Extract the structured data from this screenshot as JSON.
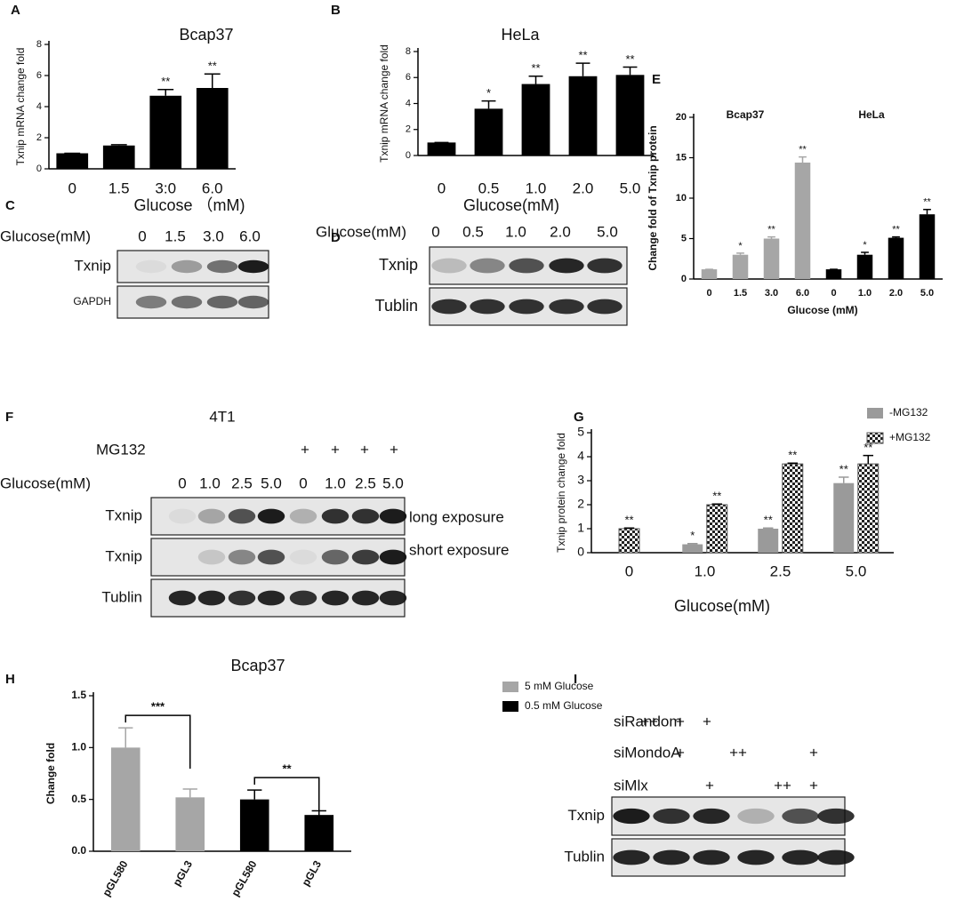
{
  "panel_letters": [
    "A",
    "B",
    "C",
    "D",
    "E",
    "F",
    "G",
    "H",
    "I"
  ],
  "chart_data": [
    {
      "type": "bar",
      "title": "Bcap37",
      "ylabel": "Txnip mRNA change fold",
      "xlabel": "Glucose （mM)",
      "categories": [
        "0",
        "1.5",
        "3:0",
        "6.0"
      ],
      "values": [
        1,
        1.5,
        4.7,
        5.2
      ],
      "errors": [
        0,
        0.05,
        0.4,
        0.9
      ],
      "labels": [
        null,
        null,
        "**",
        "**"
      ],
      "color": "#000000",
      "ylim": [
        0,
        8
      ],
      "yticks": [
        0,
        2,
        4,
        6,
        8
      ]
    },
    {
      "type": "bar",
      "title": "HeLa",
      "ylabel": "Txnip mRNA change fold",
      "xlabel": "Glucose(mM)",
      "categories": [
        "0",
        "0.5",
        "1.0",
        "2.0",
        "5.0"
      ],
      "values": [
        1,
        3.6,
        5.5,
        6.1,
        6.2
      ],
      "errors": [
        0,
        0.6,
        0.6,
        1.0,
        0.6
      ],
      "labels": [
        null,
        "*",
        "**",
        "**",
        "**"
      ],
      "color": "#000000",
      "ylim": [
        0,
        8
      ],
      "yticks": [
        0,
        2,
        4,
        6,
        8
      ]
    },
    {
      "type": "bar",
      "ylabel": "Change fold of Txnip protein",
      "xlabel": "Glucose (mM)",
      "group_labels": [
        "Bcap37",
        "HeLa"
      ],
      "categories": [
        "0",
        "1.5",
        "3.0",
        "6.0",
        "0",
        "1.0",
        "2.0",
        "5.0"
      ],
      "values": [
        1.2,
        3.0,
        5.0,
        14.4,
        1.2,
        3.0,
        5.1,
        8.0
      ],
      "errors": [
        0,
        0.2,
        0.2,
        0.7,
        0,
        0.3,
        0.1,
        0.6
      ],
      "labels": [
        null,
        "*",
        "**",
        "**",
        null,
        "*",
        "**",
        "**"
      ],
      "colors": [
        "#a6a6a6",
        "#a6a6a6",
        "#a6a6a6",
        "#a6a6a6",
        "#000000",
        "#000000",
        "#000000",
        "#000000"
      ],
      "ylim": [
        0,
        20
      ],
      "yticks": [
        0,
        5,
        10,
        15,
        20
      ]
    },
    {
      "type": "bar",
      "ylabel": "Txnip protein change fold",
      "xlabel": "Glucose(mM)",
      "categories": [
        "0",
        "1.0",
        "2.5",
        "5.0"
      ],
      "series": [
        {
          "name": "-MG132",
          "color": "#9a9a9a",
          "values": [
            null,
            0.35,
            1.0,
            2.9
          ],
          "errors": [
            null,
            0.03,
            0.03,
            0.25
          ],
          "labels": [
            null,
            "*",
            "**",
            "**"
          ]
        },
        {
          "name": "+MG132",
          "color": "#000000",
          "hatch": "checker",
          "values": [
            1.0,
            2.0,
            3.7,
            3.7
          ],
          "errors": [
            0.03,
            0.03,
            0.03,
            0.35
          ],
          "labels": [
            "**",
            "**",
            "**",
            "**"
          ]
        }
      ],
      "ylim": [
        0,
        5
      ],
      "yticks": [
        0,
        1,
        2,
        3,
        4,
        5
      ]
    },
    {
      "type": "bar",
      "title": "Bcap37",
      "ylabel": "Change fold",
      "categories": [
        "pGL580",
        "pGL3",
        "pGL580",
        "pGL3"
      ],
      "series": [
        {
          "name": "5 mM Glucose",
          "color": "#a6a6a6",
          "values": [
            1.0,
            0.52,
            null,
            null
          ],
          "errors": [
            0.19,
            0.08,
            null,
            null
          ]
        },
        {
          "name": "0.5 mM Glucose",
          "color": "#000000",
          "values": [
            null,
            null,
            0.5,
            0.35
          ],
          "errors": [
            null,
            null,
            0.09,
            0.04
          ]
        }
      ],
      "comparisons": [
        "***",
        "**"
      ],
      "ylim": [
        0,
        1.5
      ],
      "yticks": [
        {
          "value": 0,
          "label": "0.0"
        },
        0.5,
        {
          "value": 1,
          "label": "1.0"
        },
        1.5
      ]
    }
  ],
  "blots": [
    {
      "header": "Glucose(mM)",
      "lanes": [
        "0",
        "1.5",
        "3.0",
        "6.0"
      ],
      "rows": [
        "Txnip",
        "GAPDH"
      ]
    },
    {
      "header": "Glucose(mM)",
      "lanes": [
        "0",
        "0.5",
        "1.0",
        "2.0",
        "5.0"
      ],
      "rows": [
        "Txnip",
        "Tublin"
      ]
    },
    {
      "title": "4T1",
      "treatments": [
        {
          "name": "MG132",
          "marks": [
            "+",
            "+",
            "+",
            "+"
          ]
        }
      ],
      "header": "Glucose(mM)",
      "lanes": [
        "0",
        "1.0",
        "2.5",
        "5.0",
        "0",
        "1.0",
        "2.5",
        "5.0"
      ],
      "rows": [
        "Txnip",
        "Txnip",
        "Tublin"
      ],
      "notes": [
        "long exposure",
        "short exposure"
      ]
    },
    {
      "treatments": [
        {
          "name": "siRandom",
          "marks": [
            "++",
            "+",
            "+"
          ]
        },
        {
          "name": "siMondoA",
          "marks": [
            "+",
            "++",
            "+"
          ]
        },
        {
          "name": "siMlx",
          "marks": [
            "+",
            "++",
            "+"
          ]
        }
      ],
      "rows": [
        "Txnip",
        "Tublin"
      ]
    }
  ]
}
